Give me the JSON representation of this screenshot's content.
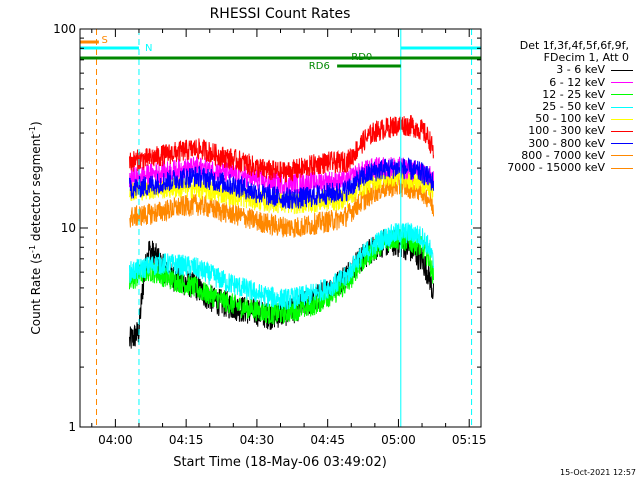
{
  "chart_data": {
    "type": "line",
    "title": "RHESSI Count Rates",
    "xlabel": "Start Time (18-May-06 03:49:02)",
    "ylabel_prefix": "Count Rate (s",
    "ylabel_sup1": "-1",
    "ylabel_mid": " detector segment",
    "ylabel_sup2": "-1",
    "ylabel_suffix": ")",
    "yscale": "log",
    "ylim": [
      1,
      100
    ],
    "xlim_minutes": [
      3.5,
      88.5
    ],
    "yticks": [
      {
        "value": 1,
        "label": "1"
      },
      {
        "value": 10,
        "label": "10"
      },
      {
        "value": 100,
        "label": "100"
      }
    ],
    "xticks": [
      {
        "minute": 11,
        "label": "04:00"
      },
      {
        "minute": 26,
        "label": "04:15"
      },
      {
        "minute": 41,
        "label": "04:30"
      },
      {
        "minute": 56,
        "label": "04:45"
      },
      {
        "minute": 71,
        "label": "05:00"
      },
      {
        "minute": 86,
        "label": "05:15"
      }
    ],
    "x_minutes": [
      14,
      16,
      18,
      20,
      22,
      25,
      28,
      30,
      32,
      35,
      38,
      40,
      42,
      44,
      46,
      48,
      50,
      52,
      54,
      56,
      58,
      60,
      61,
      62,
      64,
      66,
      68,
      70,
      72,
      74,
      76,
      77.5,
      78.5
    ],
    "series": [
      {
        "name": "3 - 6 keV",
        "color": "#000000",
        "values": [
          2.7,
          3.0,
          7.8,
          7.0,
          5.8,
          5.4,
          5.1,
          4.6,
          4.3,
          4.1,
          3.9,
          3.8,
          3.7,
          3.6,
          3.7,
          3.8,
          4.0,
          4.2,
          4.5,
          4.8,
          5.2,
          5.8,
          6.2,
          6.6,
          7.3,
          8.0,
          8.4,
          8.4,
          8.2,
          7.7,
          6.9,
          5.8,
          4.5
        ]
      },
      {
        "name": "6 - 12 keV",
        "color": "#ff00ff",
        "values": [
          18.0,
          18.2,
          18.5,
          19.0,
          19.2,
          19.8,
          20.2,
          20.0,
          19.5,
          18.8,
          18.3,
          17.8,
          17.2,
          16.9,
          16.8,
          16.7,
          16.8,
          16.9,
          17.1,
          17.2,
          17.0,
          17.2,
          17.8,
          18.5,
          19.4,
          20.0,
          20.2,
          20.3,
          20.0,
          19.6,
          19.0,
          18.2,
          17.5
        ]
      },
      {
        "name": "12 - 25 keV",
        "color": "#00ff00",
        "values": [
          5.2,
          5.8,
          6.1,
          5.9,
          5.6,
          5.3,
          5.0,
          4.7,
          4.5,
          4.2,
          4.0,
          3.9,
          3.8,
          3.7,
          3.7,
          3.8,
          3.9,
          4.0,
          4.2,
          4.5,
          4.8,
          5.2,
          5.6,
          6.2,
          7.0,
          7.8,
          8.5,
          8.8,
          8.7,
          8.4,
          8.0,
          7.0,
          5.5
        ]
      },
      {
        "name": "25 - 50 keV",
        "color": "#00ffff",
        "values": [
          6.0,
          6.2,
          6.4,
          6.6,
          6.6,
          6.5,
          6.3,
          6.0,
          5.7,
          5.3,
          5.0,
          4.8,
          4.6,
          4.5,
          4.4,
          4.4,
          4.5,
          4.6,
          4.8,
          5.0,
          5.3,
          5.7,
          6.2,
          6.8,
          7.5,
          8.3,
          8.9,
          9.3,
          9.5,
          9.4,
          9.0,
          8.0,
          6.5
        ]
      },
      {
        "name": "50 - 100 keV",
        "color": "#ffff00",
        "values": [
          15.5,
          15.6,
          15.7,
          15.8,
          15.9,
          16.0,
          15.9,
          15.6,
          15.2,
          14.8,
          14.3,
          14.0,
          13.7,
          13.5,
          13.4,
          13.3,
          13.3,
          13.4,
          13.6,
          13.7,
          13.8,
          14.2,
          14.8,
          15.5,
          16.6,
          17.5,
          18.0,
          18.2,
          18.1,
          17.6,
          17.0,
          16.0,
          15.0
        ]
      },
      {
        "name": "100 - 300 keV",
        "color": "#ff0000",
        "values": [
          21.5,
          22.0,
          22.3,
          22.8,
          23.5,
          24.3,
          25.0,
          24.6,
          23.5,
          22.4,
          21.5,
          20.5,
          19.8,
          19.4,
          19.1,
          19.3,
          19.8,
          20.4,
          21.0,
          21.4,
          21.3,
          21.6,
          22.5,
          24.5,
          28.0,
          30.5,
          31.5,
          32.5,
          33.0,
          32.5,
          31.0,
          28.0,
          24.0
        ]
      },
      {
        "name": "300 - 800 keV",
        "color": "#0000ff",
        "values": [
          15.8,
          16.0,
          16.3,
          16.8,
          17.2,
          17.8,
          18.2,
          17.9,
          17.3,
          16.6,
          16.0,
          15.3,
          14.8,
          14.5,
          14.2,
          14.1,
          14.1,
          14.3,
          14.6,
          14.9,
          15.0,
          15.5,
          16.2,
          17.0,
          18.3,
          19.3,
          19.8,
          20.0,
          19.9,
          19.5,
          18.9,
          17.8,
          16.8
        ]
      },
      {
        "name": "800 - 7000 keV",
        "color": "#ff8800",
        "values": [
          11.3,
          11.5,
          11.7,
          12.0,
          12.3,
          12.8,
          13.1,
          12.9,
          12.4,
          11.9,
          11.4,
          11.0,
          10.7,
          10.4,
          10.2,
          10.1,
          10.1,
          10.3,
          10.6,
          10.8,
          11.0,
          11.5,
          12.1,
          12.9,
          14.0,
          15.2,
          15.9,
          16.2,
          16.2,
          15.8,
          15.3,
          14.0,
          12.5
        ]
      },
      {
        "name": "7000 - 15000 keV",
        "color": "#ff8800",
        "values": []
      }
    ],
    "annotations": [
      {
        "name": "S",
        "color": "#ff8800"
      },
      {
        "name": "N",
        "color": "#00ffff"
      },
      {
        "name": "RD0",
        "color": "#008800"
      },
      {
        "name": "RD6",
        "color": "#008800"
      }
    ]
  },
  "legend": {
    "header_line1": "Det 1f,3f,4f,5f,6f,9f,",
    "header_line2": "FDecim 1, Att 0"
  },
  "footer": {
    "timestamp": "15-Oct-2021 12:57"
  }
}
